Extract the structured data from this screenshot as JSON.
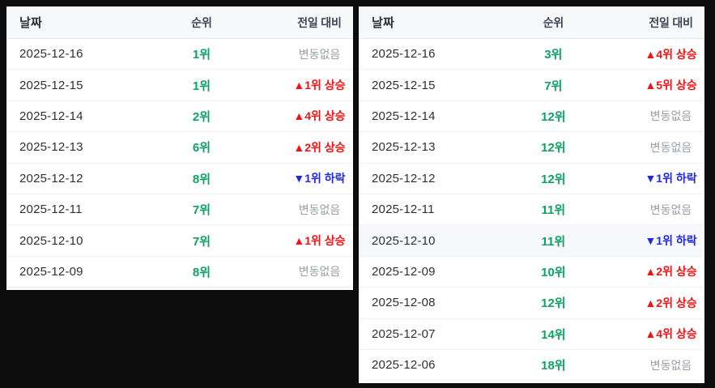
{
  "page": {
    "background": "#0d0d0d",
    "colors": {
      "rank_green": "#0aa463",
      "up_red": "#f01414",
      "down_blue": "#2028e0",
      "no_change_gray": "#9aa0a8",
      "header_bg": "#f7f8fa",
      "header_text": "#3e4553",
      "row_border": "#eef0f3",
      "highlight_row_bg": "#f6f8fa"
    }
  },
  "columns": {
    "date": "날짜",
    "rank": "순위",
    "change": "전일 대비"
  },
  "tables": [
    {
      "id": "left",
      "rows": [
        {
          "date": "2025-12-16",
          "rank": "1위",
          "change": "변동없음",
          "change_type": "none",
          "highlight": false
        },
        {
          "date": "2025-12-15",
          "rank": "1위",
          "change": "▲1위 상승",
          "change_type": "up",
          "highlight": false
        },
        {
          "date": "2025-12-14",
          "rank": "2위",
          "change": "▲4위 상승",
          "change_type": "up",
          "highlight": false
        },
        {
          "date": "2025-12-13",
          "rank": "6위",
          "change": "▲2위 상승",
          "change_type": "up",
          "highlight": false
        },
        {
          "date": "2025-12-12",
          "rank": "8위",
          "change": "▼1위 하락",
          "change_type": "down",
          "highlight": false
        },
        {
          "date": "2025-12-11",
          "rank": "7위",
          "change": "변동없음",
          "change_type": "none",
          "highlight": false
        },
        {
          "date": "2025-12-10",
          "rank": "7위",
          "change": "▲1위 상승",
          "change_type": "up",
          "highlight": false
        },
        {
          "date": "2025-12-09",
          "rank": "8위",
          "change": "변동없음",
          "change_type": "none",
          "highlight": false
        }
      ]
    },
    {
      "id": "right",
      "rows": [
        {
          "date": "2025-12-16",
          "rank": "3위",
          "change": "▲4위 상승",
          "change_type": "up",
          "highlight": false
        },
        {
          "date": "2025-12-15",
          "rank": "7위",
          "change": "▲5위 상승",
          "change_type": "up",
          "highlight": false
        },
        {
          "date": "2025-12-14",
          "rank": "12위",
          "change": "변동없음",
          "change_type": "none",
          "highlight": false
        },
        {
          "date": "2025-12-13",
          "rank": "12위",
          "change": "변동없음",
          "change_type": "none",
          "highlight": false
        },
        {
          "date": "2025-12-12",
          "rank": "12위",
          "change": "▼1위 하락",
          "change_type": "down",
          "highlight": false
        },
        {
          "date": "2025-12-11",
          "rank": "11위",
          "change": "변동없음",
          "change_type": "none",
          "highlight": false
        },
        {
          "date": "2025-12-10",
          "rank": "11위",
          "change": "▼1위 하락",
          "change_type": "down",
          "highlight": true
        },
        {
          "date": "2025-12-09",
          "rank": "10위",
          "change": "▲2위 상승",
          "change_type": "up",
          "highlight": false
        },
        {
          "date": "2025-12-08",
          "rank": "12위",
          "change": "▲2위 상승",
          "change_type": "up",
          "highlight": false
        },
        {
          "date": "2025-12-07",
          "rank": "14위",
          "change": "▲4위 상승",
          "change_type": "up",
          "highlight": false
        },
        {
          "date": "2025-12-06",
          "rank": "18위",
          "change": "변동없음",
          "change_type": "none",
          "highlight": false
        }
      ]
    }
  ]
}
